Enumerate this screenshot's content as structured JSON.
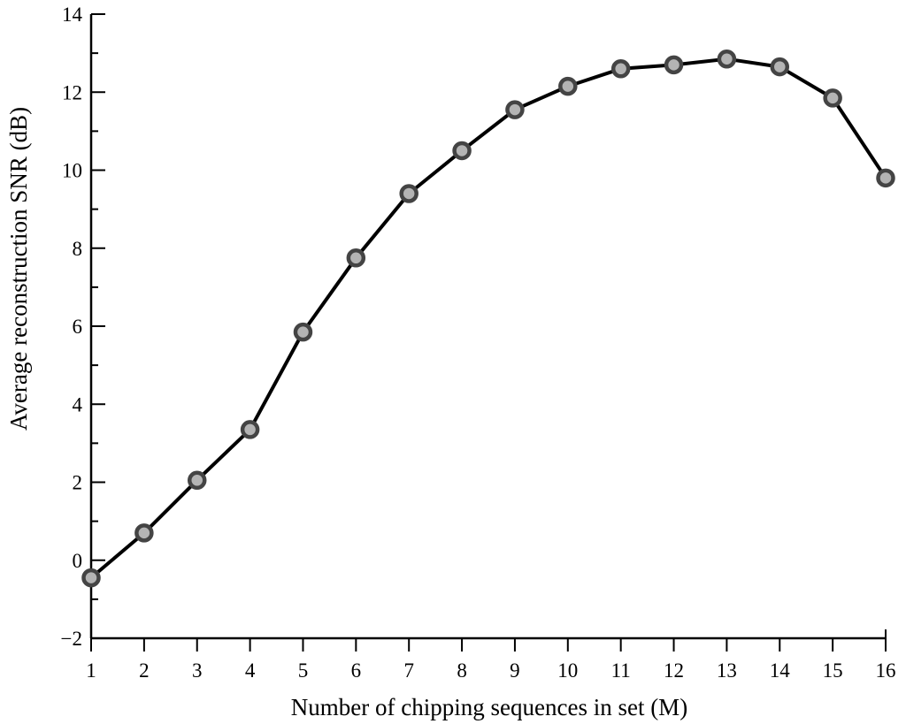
{
  "chart_data": {
    "type": "line",
    "title": "",
    "xlabel": "Number of chipping sequences in set (M)",
    "ylabel": "Average reconstruction SNR (dB)",
    "xlim": [
      1,
      16
    ],
    "ylim": [
      -2,
      14
    ],
    "x_ticks": [
      1,
      2,
      3,
      4,
      5,
      6,
      7,
      8,
      9,
      10,
      11,
      12,
      13,
      14,
      15,
      16
    ],
    "y_ticks": [
      -2,
      0,
      2,
      4,
      6,
      8,
      10,
      12,
      14
    ],
    "y_tick_labels": [
      "−2",
      "0",
      "2",
      "4",
      "6",
      "8",
      "10",
      "12",
      "14"
    ],
    "grid": false,
    "legend": "none",
    "series": [
      {
        "x": [
          1,
          2,
          3,
          4,
          5,
          6,
          7,
          8,
          9,
          10,
          11,
          12,
          13,
          14,
          15,
          16
        ],
        "values": [
          -0.45,
          0.7,
          2.05,
          3.35,
          5.85,
          7.75,
          9.4,
          10.5,
          11.55,
          12.15,
          12.6,
          12.7,
          12.85,
          12.65,
          11.85,
          9.8
        ],
        "line_color": "#000000",
        "marker_edge_color": "#444444",
        "marker_fill_color": "#b4b4b4"
      }
    ]
  }
}
